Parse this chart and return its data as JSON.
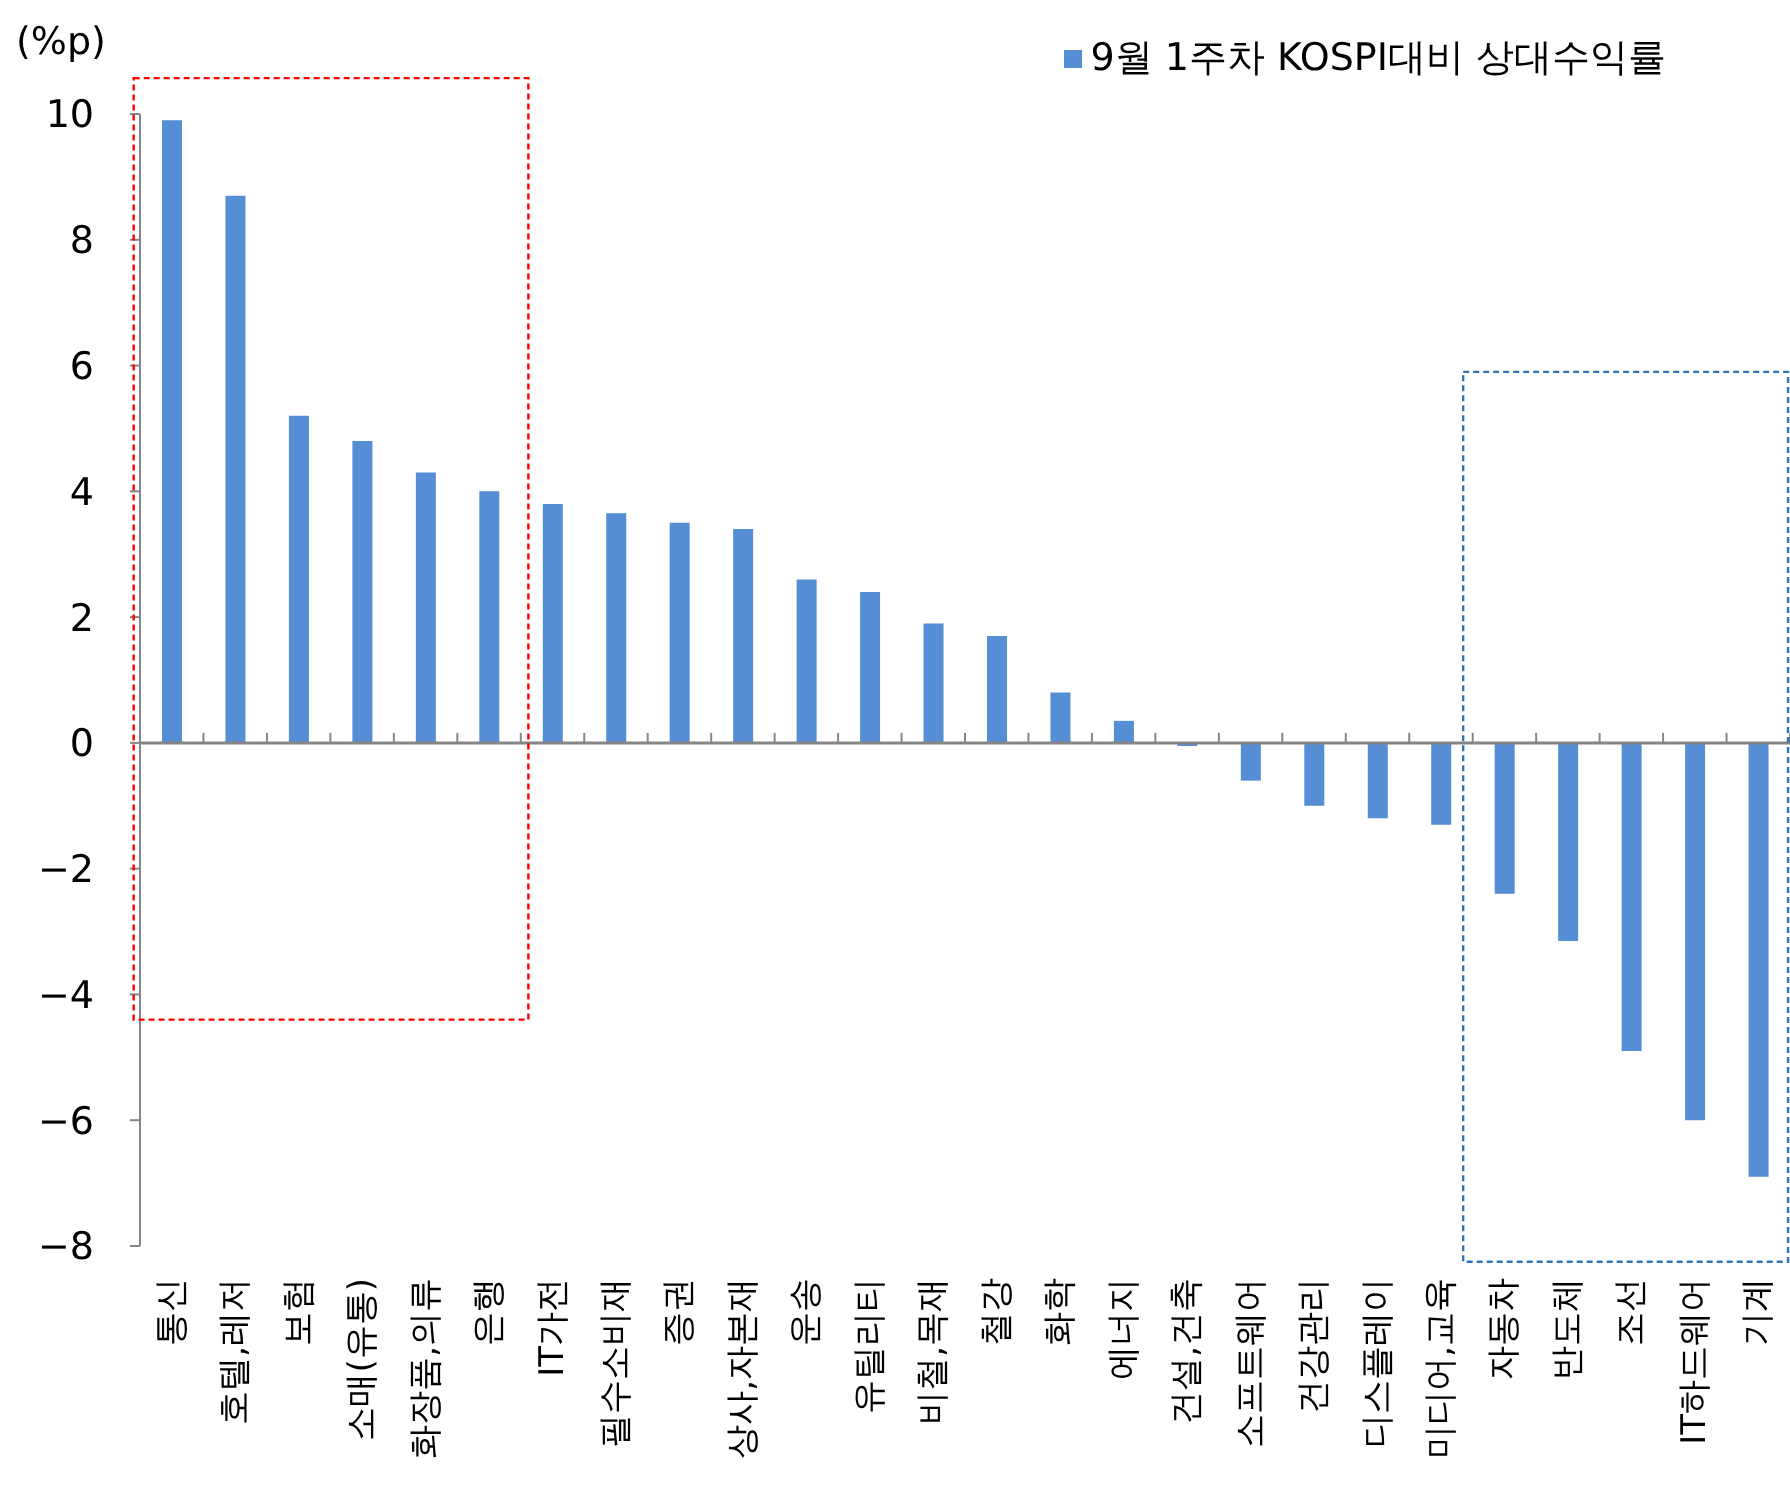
{
  "chart_data": {
    "type": "bar",
    "ylabel": "(%p)",
    "categories": [
      "통신",
      "호텔,레저",
      "보험",
      "소매(유통)",
      "화장품,의류",
      "은행",
      "IT가전",
      "필수소비재",
      "증권",
      "상사,자본재",
      "운송",
      "유틸리티",
      "비철,목재",
      "철강",
      "화학",
      "에너지",
      "건설,건축",
      "소프트웨어",
      "건강관리",
      "디스플레이",
      "미디어,교육",
      "자동차",
      "반도체",
      "조선",
      "IT하드웨어",
      "기계"
    ],
    "series": [
      {
        "name": "9월 1주차 KOSPI대비 상대수익률",
        "color": "#558ed5",
        "values": [
          9.9,
          8.7,
          5.2,
          4.8,
          4.3,
          4.0,
          3.8,
          3.65,
          3.5,
          3.4,
          2.6,
          2.4,
          1.9,
          1.7,
          0.8,
          0.35,
          -0.05,
          -0.6,
          -1.0,
          -1.2,
          -1.3,
          -2.4,
          -3.15,
          -4.9,
          -6.0,
          -6.9
        ]
      }
    ],
    "ylim": [
      -8,
      10
    ],
    "yticks": [
      {
        "value": -8,
        "label": "−8"
      },
      {
        "value": -6,
        "label": "−6"
      },
      {
        "value": -4,
        "label": "−4"
      },
      {
        "value": -2,
        "label": "−2"
      },
      0,
      2,
      4,
      6,
      8,
      10
    ],
    "legend": "top right"
  }
}
